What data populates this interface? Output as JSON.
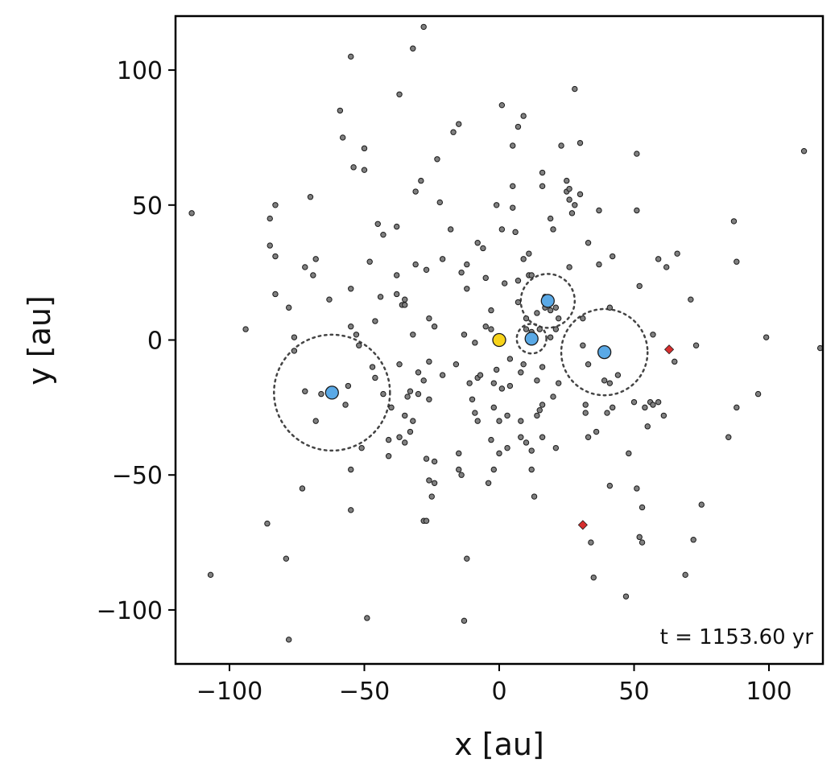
{
  "chart_data": {
    "type": "scatter",
    "xlabel": "x [au]",
    "ylabel": "y [au]",
    "xlim": [
      -120,
      120
    ],
    "ylim": [
      -120,
      120
    ],
    "xticks": [
      -100,
      -50,
      0,
      50,
      100
    ],
    "yticks": [
      -100,
      -50,
      0,
      50,
      100
    ],
    "xtick_labels": [
      "−100",
      "−50",
      "0",
      "50",
      "100"
    ],
    "ytick_labels": [
      "−100",
      "−50",
      "0",
      "50",
      "100"
    ],
    "grid": false,
    "annotation": "t = 1153.60 yr",
    "colors": {
      "star": "#f7d31a",
      "planet": "#5aa9e6",
      "field_particle": "#808080",
      "marker_edge": "#1a1a1a",
      "highlight": "#d62f2f",
      "hill_circle": "#444444"
    },
    "series": [
      {
        "role": "star",
        "marker": "circle",
        "points": [
          [
            0,
            0
          ]
        ]
      },
      {
        "role": "planets",
        "marker": "circle",
        "points": [
          [
            -62,
            -19.5
          ],
          [
            12,
            0.5
          ],
          [
            18,
            14.5
          ],
          [
            39,
            -4.5
          ]
        ]
      },
      {
        "role": "planet_radius_circles",
        "marker": "dotted-circle",
        "circles": [
          {
            "cx": -62,
            "cy": -19.5,
            "r": 21.5
          },
          {
            "cx": 12,
            "cy": 0.5,
            "r": 5.5
          },
          {
            "cx": 18,
            "cy": 14.5,
            "r": 10
          },
          {
            "cx": 39,
            "cy": -4.5,
            "r": 16
          }
        ]
      },
      {
        "role": "highlighted_particles",
        "marker": "diamond",
        "points": [
          [
            63,
            -3.5
          ],
          [
            31,
            -68.5
          ]
        ]
      },
      {
        "role": "particles",
        "marker": "circle",
        "points": [
          [
            -114,
            47
          ],
          [
            -107,
            -87
          ],
          [
            -94,
            4
          ],
          [
            -86,
            -68
          ],
          [
            -85,
            45
          ],
          [
            -83,
            50
          ],
          [
            -85,
            35
          ],
          [
            -83,
            31
          ],
          [
            -83,
            17
          ],
          [
            -79,
            -81
          ],
          [
            -78,
            -111
          ],
          [
            -78,
            12
          ],
          [
            -76,
            1
          ],
          [
            -76,
            -4
          ],
          [
            -73,
            -55
          ],
          [
            -72,
            -19
          ],
          [
            -72,
            27
          ],
          [
            -70,
            53
          ],
          [
            -69,
            24
          ],
          [
            -68,
            30
          ],
          [
            -68,
            -30
          ],
          [
            -66,
            -20
          ],
          [
            -63,
            15
          ],
          [
            -59,
            85
          ],
          [
            -58,
            75
          ],
          [
            -57,
            -24
          ],
          [
            -56,
            -17
          ],
          [
            -55,
            105
          ],
          [
            -55,
            5
          ],
          [
            -55,
            19
          ],
          [
            -55,
            -63
          ],
          [
            -55,
            -48
          ],
          [
            -54,
            64
          ],
          [
            -53,
            2
          ],
          [
            -52,
            -2
          ],
          [
            -51,
            -40
          ],
          [
            -50,
            63
          ],
          [
            -50,
            71
          ],
          [
            -49,
            -103
          ],
          [
            -48,
            29
          ],
          [
            -47,
            -10
          ],
          [
            -45,
            43
          ],
          [
            -46,
            -14
          ],
          [
            -46,
            7
          ],
          [
            -44,
            16
          ],
          [
            -43,
            39
          ],
          [
            -43,
            -20
          ],
          [
            -41,
            -43
          ],
          [
            -41,
            -37
          ],
          [
            -40,
            -25
          ],
          [
            -38,
            24
          ],
          [
            -38,
            17
          ],
          [
            -38,
            42
          ],
          [
            -37,
            -9
          ],
          [
            -37,
            -36
          ],
          [
            -36,
            13
          ],
          [
            -37,
            91
          ],
          [
            -35,
            13
          ],
          [
            -35,
            15
          ],
          [
            -35,
            -38
          ],
          [
            -34,
            -21
          ],
          [
            -33,
            -34
          ],
          [
            -33,
            -19
          ],
          [
            -32,
            108
          ],
          [
            -32,
            2
          ],
          [
            -32,
            -30
          ],
          [
            -31,
            55
          ],
          [
            -31,
            28
          ],
          [
            -30,
            -20
          ],
          [
            -30,
            -12
          ],
          [
            -29,
            59
          ],
          [
            -28,
            -67
          ],
          [
            -28,
            -15
          ],
          [
            -28,
            116
          ],
          [
            -27,
            -44
          ],
          [
            -27,
            -67
          ],
          [
            -26,
            -52
          ],
          [
            -27,
            26
          ],
          [
            -26,
            -22
          ],
          [
            -26,
            -8
          ],
          [
            -26,
            8
          ],
          [
            -25,
            -58
          ],
          [
            -24,
            -53
          ],
          [
            -24,
            5
          ],
          [
            -23,
            67
          ],
          [
            -22,
            51
          ],
          [
            -21,
            30
          ],
          [
            -21,
            -13
          ],
          [
            -18,
            41
          ],
          [
            -17,
            77
          ],
          [
            -16,
            -9
          ],
          [
            -15,
            -42
          ],
          [
            -15,
            80
          ],
          [
            -15,
            -48
          ],
          [
            -14,
            -50
          ],
          [
            -13,
            2
          ],
          [
            -14,
            25
          ],
          [
            -13,
            -104
          ],
          [
            -12,
            -81
          ],
          [
            -12,
            28
          ],
          [
            -12,
            19
          ],
          [
            -11,
            -16
          ],
          [
            -10,
            -22
          ],
          [
            -9,
            -1
          ],
          [
            -9,
            -27
          ],
          [
            -8,
            -14
          ],
          [
            -8,
            -30
          ],
          [
            -8,
            36
          ],
          [
            -7,
            -13
          ],
          [
            -6,
            34
          ],
          [
            -5,
            23
          ],
          [
            -5,
            5
          ],
          [
            -4,
            -53
          ],
          [
            -3,
            4
          ],
          [
            -3,
            11
          ],
          [
            -3,
            -37
          ],
          [
            -2,
            -25
          ],
          [
            -2,
            -48
          ],
          [
            -2,
            -16
          ],
          [
            -1,
            -11
          ],
          [
            -1,
            50
          ],
          [
            0,
            -42
          ],
          [
            0,
            -30
          ],
          [
            1,
            87
          ],
          [
            1,
            41
          ],
          [
            1,
            -18
          ],
          [
            2,
            21
          ],
          [
            3,
            -40
          ],
          [
            3,
            -28
          ],
          [
            4,
            -7
          ],
          [
            4,
            -17
          ],
          [
            5,
            72
          ],
          [
            5,
            49
          ],
          [
            5,
            57
          ],
          [
            6,
            40
          ],
          [
            7,
            79
          ],
          [
            7,
            22
          ],
          [
            7,
            14
          ],
          [
            8,
            -12
          ],
          [
            8,
            -30
          ],
          [
            8,
            -36
          ],
          [
            9,
            83
          ],
          [
            9,
            30
          ],
          [
            9,
            -9
          ],
          [
            10,
            -38
          ],
          [
            10,
            8
          ],
          [
            10,
            4
          ],
          [
            11,
            32
          ],
          [
            11,
            24
          ],
          [
            12,
            24
          ],
          [
            12,
            2
          ],
          [
            12,
            -41
          ],
          [
            12,
            -48
          ],
          [
            12,
            3
          ],
          [
            13,
            -58
          ],
          [
            14,
            -28
          ],
          [
            14,
            -15
          ],
          [
            14,
            10
          ],
          [
            15,
            -26
          ],
          [
            16,
            62
          ],
          [
            15,
            4
          ],
          [
            16,
            -24
          ],
          [
            16,
            -36
          ],
          [
            16,
            -10
          ],
          [
            16,
            57
          ],
          [
            17,
            16
          ],
          [
            17,
            12
          ],
          [
            19,
            11
          ],
          [
            19,
            1
          ],
          [
            20,
            -21
          ],
          [
            19,
            45
          ],
          [
            20,
            41
          ],
          [
            21,
            12
          ],
          [
            21,
            -40
          ],
          [
            21,
            4
          ],
          [
            22,
            8
          ],
          [
            22,
            -16
          ],
          [
            23,
            72
          ],
          [
            25,
            59
          ],
          [
            25,
            55
          ],
          [
            26,
            56
          ],
          [
            26,
            52
          ],
          [
            26,
            27
          ],
          [
            27,
            47
          ],
          [
            28,
            93
          ],
          [
            28,
            50
          ],
          [
            30,
            73
          ],
          [
            30,
            54
          ],
          [
            31,
            8
          ],
          [
            31,
            -2
          ],
          [
            32,
            -24
          ],
          [
            32,
            -27
          ],
          [
            33,
            36
          ],
          [
            33,
            -36
          ],
          [
            33,
            -9
          ],
          [
            34,
            -75
          ],
          [
            35,
            -88
          ],
          [
            36,
            -34
          ],
          [
            37,
            28
          ],
          [
            37,
            48
          ],
          [
            39,
            -15
          ],
          [
            40,
            -27
          ],
          [
            41,
            12
          ],
          [
            41,
            -16
          ],
          [
            41,
            -54
          ],
          [
            42,
            -25
          ],
          [
            42,
            31
          ],
          [
            44,
            -13
          ],
          [
            47,
            -95
          ],
          [
            48,
            -42
          ],
          [
            50,
            -23
          ],
          [
            51,
            -55
          ],
          [
            51,
            69
          ],
          [
            51,
            48
          ],
          [
            52,
            -73
          ],
          [
            52,
            20
          ],
          [
            53,
            -75
          ],
          [
            53,
            -62
          ],
          [
            54,
            -25
          ],
          [
            55,
            -32
          ],
          [
            56,
            -23
          ],
          [
            57,
            2
          ],
          [
            57,
            -24
          ],
          [
            59,
            -23
          ],
          [
            59,
            30
          ],
          [
            61,
            -28
          ],
          [
            62,
            27
          ],
          [
            65,
            -8
          ],
          [
            66,
            32
          ],
          [
            69,
            -87
          ],
          [
            71,
            15
          ],
          [
            72,
            -74
          ],
          [
            73,
            -2
          ],
          [
            75,
            -61
          ],
          [
            85,
            -36
          ],
          [
            87,
            44
          ],
          [
            88,
            -25
          ],
          [
            88,
            29
          ],
          [
            96,
            -20
          ],
          [
            99,
            1
          ],
          [
            113,
            70
          ],
          [
            119,
            -3
          ],
          [
            18,
            13
          ],
          [
            -24,
            -45
          ],
          [
            -35,
            -28
          ]
        ]
      }
    ]
  }
}
